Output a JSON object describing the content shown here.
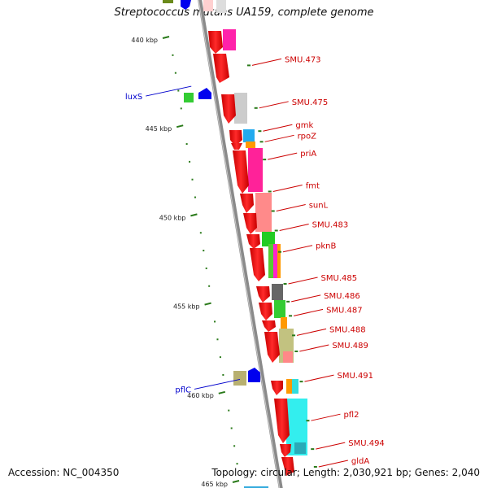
{
  "title": "Streptococcus mutans UA159, complete genome",
  "footer": {
    "accession": "Accession: NC_004350",
    "stats": "Topology: circular; Length: 2,030,921 bp; Genes: 2,040"
  },
  "colors": {
    "backbone": "#7f7f7f",
    "cds": "#ff0000",
    "tick": "#2a7a1a",
    "label_right": "#cc0000",
    "label_left": "#0000cc"
  },
  "kbp_ticks": [
    {
      "label": "440 kbp",
      "kbp": 440
    },
    {
      "label": "445 kbp",
      "kbp": 445
    },
    {
      "label": "450 kbp",
      "kbp": 450
    },
    {
      "label": "455 kbp",
      "kbp": 455
    },
    {
      "label": "460 kbp",
      "kbp": 460
    },
    {
      "label": "465 kbp",
      "kbp": 465
    }
  ],
  "right_labels": [
    {
      "name": "SMU.473",
      "kbp": 441.3
    },
    {
      "name": "SMU.475",
      "kbp": 443.7
    },
    {
      "name": "gmk",
      "kbp": 445.0
    },
    {
      "name": "rpoZ",
      "kbp": 445.6
    },
    {
      "name": "priA",
      "kbp": 446.6
    },
    {
      "name": "fmt",
      "kbp": 448.4
    },
    {
      "name": "sunL",
      "kbp": 449.5
    },
    {
      "name": "SMU.483",
      "kbp": 450.6
    },
    {
      "name": "pknB",
      "kbp": 451.8
    },
    {
      "name": "SMU.485",
      "kbp": 453.6
    },
    {
      "name": "SMU.486",
      "kbp": 454.6
    },
    {
      "name": "SMU.487",
      "kbp": 455.4
    },
    {
      "name": "SMU.488",
      "kbp": 456.5
    },
    {
      "name": "SMU.489",
      "kbp": 457.4
    },
    {
      "name": "SMU.491",
      "kbp": 459.1
    },
    {
      "name": "pfl2",
      "kbp": 461.3
    },
    {
      "name": "SMU.494",
      "kbp": 462.9
    },
    {
      "name": "gldA",
      "kbp": 463.9
    }
  ],
  "left_labels": [
    {
      "name": "luxS",
      "kbp": 443.3
    },
    {
      "name": "pflC",
      "kbp": 459.8
    }
  ]
}
